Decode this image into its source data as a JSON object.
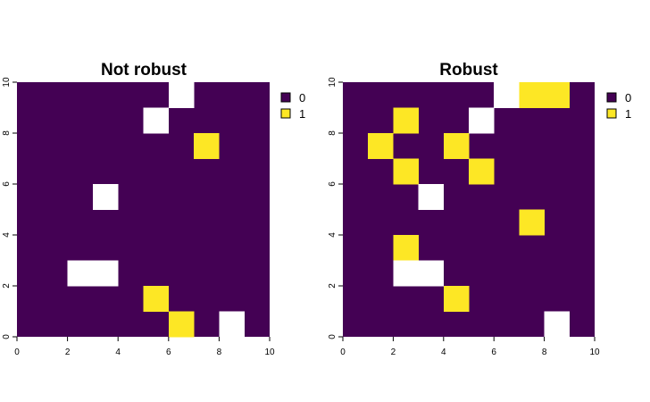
{
  "chart_data": [
    {
      "type": "heatmap",
      "title": "Not robust",
      "xlabel": "",
      "ylabel": "",
      "xlim": [
        0,
        10
      ],
      "ylim": [
        0,
        10
      ],
      "xticks": [
        0,
        2,
        4,
        6,
        8,
        10
      ],
      "yticks": [
        0,
        2,
        4,
        6,
        8,
        10
      ],
      "default_value": 0,
      "cells_value_1": [
        [
          6,
          0
        ],
        [
          5,
          1
        ],
        [
          7,
          7
        ]
      ],
      "cells_missing": [
        [
          8,
          0
        ],
        [
          2,
          2
        ],
        [
          3,
          2
        ],
        [
          3,
          5
        ],
        [
          5,
          8
        ],
        [
          6,
          9
        ]
      ],
      "legend": [
        {
          "label": "0",
          "color": "#440154"
        },
        {
          "label": "1",
          "color": "#FDE725"
        }
      ]
    },
    {
      "type": "heatmap",
      "title": "Robust",
      "xlabel": "",
      "ylabel": "",
      "xlim": [
        0,
        10
      ],
      "ylim": [
        0,
        10
      ],
      "xticks": [
        0,
        2,
        4,
        6,
        8,
        10
      ],
      "yticks": [
        0,
        2,
        4,
        6,
        8,
        10
      ],
      "default_value": 0,
      "cells_value_1": [
        [
          4,
          1
        ],
        [
          2,
          3
        ],
        [
          7,
          4
        ],
        [
          5,
          6
        ],
        [
          2,
          6
        ],
        [
          1,
          7
        ],
        [
          4,
          7
        ],
        [
          2,
          8
        ],
        [
          7,
          9
        ],
        [
          8,
          9
        ]
      ],
      "cells_missing": [
        [
          8,
          0
        ],
        [
          2,
          2
        ],
        [
          3,
          2
        ],
        [
          3,
          5
        ],
        [
          5,
          8
        ],
        [
          6,
          9
        ]
      ],
      "legend": [
        {
          "label": "0",
          "color": "#440154"
        },
        {
          "label": "1",
          "color": "#FDE725"
        }
      ]
    }
  ],
  "colors": {
    "value_0": "#440154",
    "value_1": "#FDE725",
    "missing": "#FFFFFF"
  }
}
